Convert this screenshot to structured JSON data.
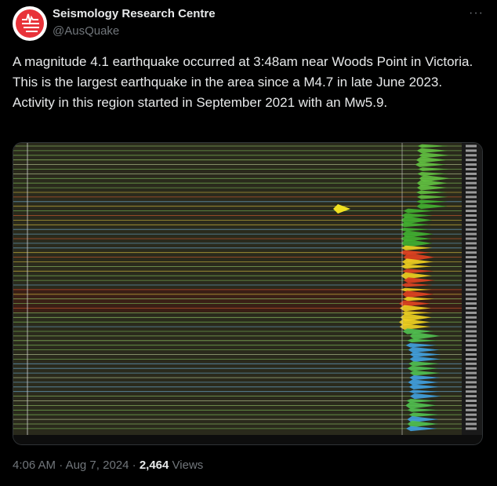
{
  "tweet": {
    "author": {
      "name": "Seismology Research Centre",
      "handle": "@AusQuake"
    },
    "text": "A magnitude 4.1 earthquake occurred at 3:48am near Woods Point in Victoria. This is the largest earthquake in the area since a M4.7 in late June 2023. Activity in this region started in September 2021 with an Mw5.9.",
    "more": "···",
    "footer": {
      "time": "4:06 AM",
      "separator": "·",
      "date": "Aug 7, 2024",
      "views_count": "2,464",
      "views_label": "Views"
    }
  }
}
